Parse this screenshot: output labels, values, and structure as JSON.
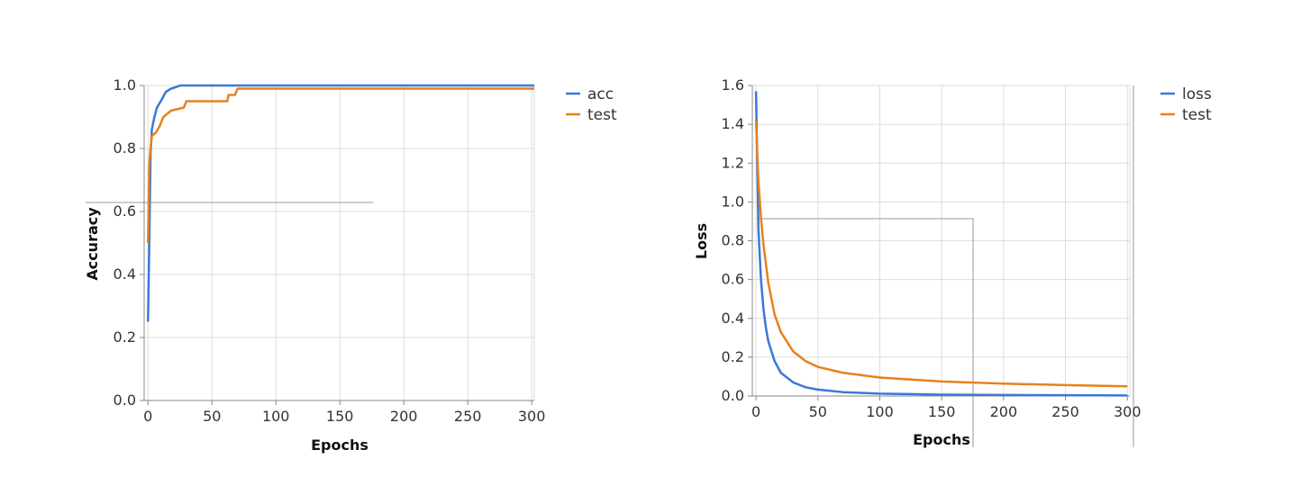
{
  "chart_data": [
    {
      "type": "line",
      "xlabel": "Epochs",
      "ylabel": "Accuracy",
      "xlim": [
        -3,
        302
      ],
      "ylim": [
        0,
        1.0
      ],
      "xticks": [
        0,
        50,
        100,
        150,
        200,
        250,
        300
      ],
      "yticks": [
        0.0,
        0.2,
        0.4,
        0.6,
        0.8,
        1.0
      ],
      "xtick_labels": [
        "0",
        "50",
        "100",
        "150",
        "200",
        "250",
        "300"
      ],
      "ytick_labels": [
        "0.0",
        "0.2",
        "0.4",
        "0.6",
        "0.8",
        "1.0"
      ],
      "grid": true,
      "legend": "right",
      "series": [
        {
          "name": "acc",
          "color": "#3b78d8",
          "points": [
            [
              0,
              0.25
            ],
            [
              1,
              0.5
            ],
            [
              2,
              0.78
            ],
            [
              3,
              0.86
            ],
            [
              5,
              0.9
            ],
            [
              7,
              0.93
            ],
            [
              10,
              0.95
            ],
            [
              14,
              0.98
            ],
            [
              18,
              0.99
            ],
            [
              22,
              0.995
            ],
            [
              25,
              1.0
            ],
            [
              302,
              1.0
            ]
          ]
        },
        {
          "name": "test",
          "color": "#e8801d",
          "points": [
            [
              0,
              0.5
            ],
            [
              1,
              0.75
            ],
            [
              2,
              0.8
            ],
            [
              3,
              0.84
            ],
            [
              6,
              0.85
            ],
            [
              9,
              0.87
            ],
            [
              12,
              0.9
            ],
            [
              15,
              0.91
            ],
            [
              18,
              0.92
            ],
            [
              28,
              0.93
            ],
            [
              30,
              0.95
            ],
            [
              62,
              0.95
            ],
            [
              63,
              0.97
            ],
            [
              68,
              0.97
            ],
            [
              70,
              0.99
            ],
            [
              302,
              0.99
            ]
          ]
        }
      ]
    },
    {
      "type": "line",
      "xlabel": "Epochs",
      "ylabel": "Loss",
      "xlim": [
        -3,
        302
      ],
      "ylim": [
        0,
        1.6
      ],
      "xticks": [
        0,
        50,
        100,
        150,
        200,
        250,
        300
      ],
      "yticks": [
        0.0,
        0.2,
        0.4,
        0.6,
        0.8,
        1.0,
        1.2,
        1.4,
        1.6
      ],
      "xtick_labels": [
        "0",
        "50",
        "100",
        "150",
        "200",
        "250",
        "300"
      ],
      "ytick_labels": [
        "0.0",
        "0.2",
        "0.4",
        "0.6",
        "0.8",
        "1.0",
        "1.2",
        "1.4",
        "1.6"
      ],
      "grid": true,
      "legend": "right",
      "series": [
        {
          "name": "loss",
          "color": "#3b78d8",
          "points": [
            [
              0,
              1.57
            ],
            [
              1,
              1.2
            ],
            [
              2,
              0.85
            ],
            [
              4,
              0.6
            ],
            [
              6,
              0.45
            ],
            [
              8,
              0.35
            ],
            [
              10,
              0.28
            ],
            [
              15,
              0.18
            ],
            [
              20,
              0.12
            ],
            [
              30,
              0.07
            ],
            [
              40,
              0.045
            ],
            [
              50,
              0.033
            ],
            [
              70,
              0.02
            ],
            [
              100,
              0.012
            ],
            [
              150,
              0.007
            ],
            [
              200,
              0.005
            ],
            [
              250,
              0.004
            ],
            [
              300,
              0.003
            ]
          ]
        },
        {
          "name": "test",
          "color": "#e8801d",
          "points": [
            [
              0,
              1.42
            ],
            [
              1,
              1.25
            ],
            [
              2,
              1.1
            ],
            [
              4,
              0.92
            ],
            [
              6,
              0.78
            ],
            [
              8,
              0.68
            ],
            [
              10,
              0.58
            ],
            [
              15,
              0.42
            ],
            [
              20,
              0.33
            ],
            [
              30,
              0.23
            ],
            [
              40,
              0.18
            ],
            [
              50,
              0.15
            ],
            [
              70,
              0.12
            ],
            [
              100,
              0.095
            ],
            [
              150,
              0.075
            ],
            [
              200,
              0.064
            ],
            [
              250,
              0.056
            ],
            [
              300,
              0.05
            ]
          ]
        }
      ]
    }
  ]
}
